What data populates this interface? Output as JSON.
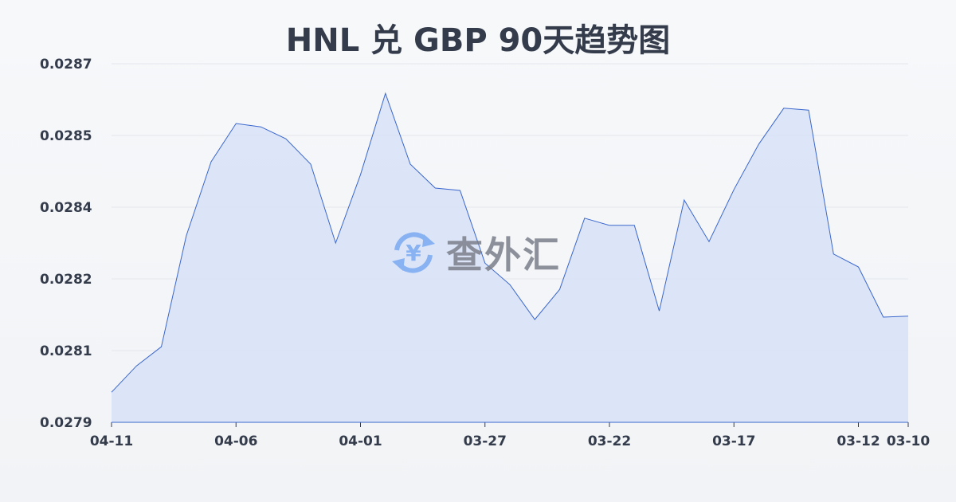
{
  "chart_data": {
    "type": "area",
    "title": "HNL 兑 GBP 90天趋势图",
    "xlabel": "",
    "ylabel": "",
    "x": [
      "04-11",
      "04-10",
      "04-09",
      "04-08",
      "04-07",
      "04-06",
      "04-05",
      "04-04",
      "04-03",
      "04-02",
      "04-01",
      "03-31",
      "03-30",
      "03-29",
      "03-28",
      "03-27",
      "03-26",
      "03-25",
      "03-24",
      "03-23",
      "03-22",
      "03-21",
      "03-20",
      "03-19",
      "03-18",
      "03-17",
      "03-16",
      "03-15",
      "03-14",
      "03-13",
      "03-12",
      "03-11",
      "03-10"
    ],
    "values": [
      0.027963,
      0.028018,
      0.028058,
      0.02829,
      0.028445,
      0.028525,
      0.028518,
      0.028493,
      0.02844,
      0.028275,
      0.028418,
      0.028588,
      0.02844,
      0.02839,
      0.028385,
      0.028233,
      0.028188,
      0.028115,
      0.028178,
      0.028327,
      0.028312,
      0.028312,
      0.028133,
      0.028365,
      0.028278,
      0.028387,
      0.028482,
      0.028557,
      0.028553,
      0.028252,
      0.028225,
      0.02812,
      0.028122
    ],
    "x_tick_labels": [
      "04-11",
      "04-06",
      "04-01",
      "03-27",
      "03-22",
      "03-17",
      "03-12",
      "03-10"
    ],
    "y_tick_labels": [
      "0.0279",
      "0.0281",
      "0.0282",
      "0.0284",
      "0.0285",
      "0.0287"
    ],
    "ylim": [
      0.0279,
      0.02865
    ],
    "grid": true,
    "colors": {
      "line": "#3a66cc",
      "fill": "#d6e1f7"
    }
  },
  "watermark": "查外汇"
}
